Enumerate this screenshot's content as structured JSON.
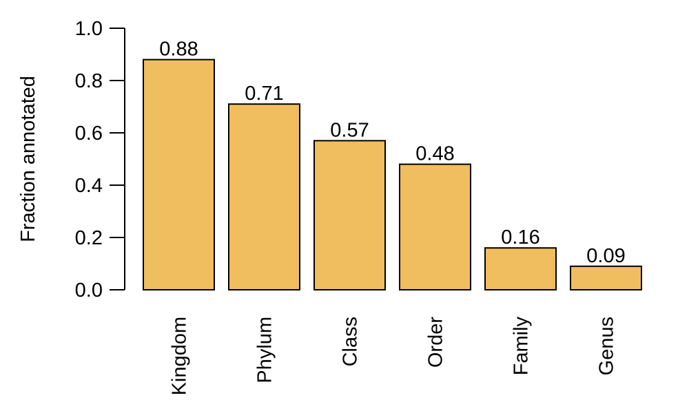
{
  "chart_data": {
    "type": "bar",
    "categories": [
      "Kingdom",
      "Phylum",
      "Class",
      "Order",
      "Family",
      "Genus"
    ],
    "values": [
      0.88,
      0.71,
      0.57,
      0.48,
      0.16,
      0.09
    ],
    "data_labels": [
      "0.88",
      "0.71",
      "0.57",
      "0.48",
      "0.16",
      "0.09"
    ],
    "title": "",
    "xlabel": "",
    "ylabel": "Fraction annotated",
    "ylim": [
      0,
      1.0
    ],
    "yticks": [
      0.0,
      0.2,
      0.4,
      0.6,
      0.8,
      1.0
    ],
    "ytick_labels": [
      "0.0",
      "0.2",
      "0.4",
      "0.6",
      "0.8",
      "1.0"
    ],
    "bar_color": "#f0be5e",
    "grid": false,
    "legend": "none"
  }
}
